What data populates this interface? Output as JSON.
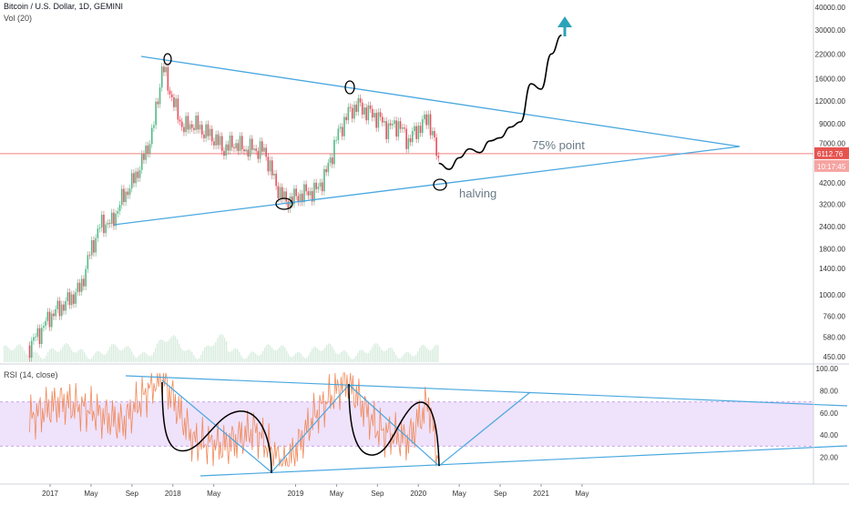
{
  "legend": {
    "symbol": "Bitcoin / U.S. Dollar, 1D, GEMINI",
    "volume": "Vol (20)",
    "rsi": "RSI (14, close)"
  },
  "annotations": {
    "point75": "75% point",
    "halving": "halving"
  },
  "price_badges": {
    "last_price": "6112.76",
    "countdown": "10:17:45"
  },
  "colors": {
    "trendline": "#4aa8e0",
    "candle_up": "#53b987",
    "candle_down": "#eb4d5c",
    "hline": "#f57f7f",
    "rsi_line": "#f0895a",
    "rsi_band": "#efe2fb",
    "arrow": "#2aa3b8",
    "drawing": "#000000"
  },
  "chart_data": [
    {
      "type": "line",
      "name": "price",
      "scale": "log",
      "y_tick_labels": [
        "40000.00",
        "30000.00",
        "22000.00",
        "16000.00",
        "12000.00",
        "9000.00",
        "7000.00",
        "6112.76",
        "5400.00",
        "4200.00",
        "3200.00",
        "2400.00",
        "1800.00",
        "1400.00",
        "1000.00",
        "760.00",
        "580.00",
        "450.00"
      ],
      "ylim": [
        420,
        42000
      ],
      "x_tick_labels": [
        "2017",
        "May",
        "Sep",
        "2018",
        "May",
        "2019",
        "May",
        "Sep",
        "2020",
        "May",
        "Sep",
        "2021",
        "May"
      ],
      "x": [
        "2016-11",
        "2016-12",
        "2017-01",
        "2017-02",
        "2017-03",
        "2017-04",
        "2017-05",
        "2017-06",
        "2017-07",
        "2017-08",
        "2017-09",
        "2017-10",
        "2017-11",
        "2017-12",
        "2018-01",
        "2018-02",
        "2018-03",
        "2018-04",
        "2018-05",
        "2018-06",
        "2018-07",
        "2018-08",
        "2018-09",
        "2018-10",
        "2018-11",
        "2018-12",
        "2019-01",
        "2019-02",
        "2019-03",
        "2019-04",
        "2019-05",
        "2019-06",
        "2019-07",
        "2019-08",
        "2019-09",
        "2019-10",
        "2019-11",
        "2019-12",
        "2020-01",
        "2020-02",
        "2020-03"
      ],
      "values": [
        520,
        620,
        760,
        850,
        950,
        1100,
        1800,
        2500,
        2500,
        3400,
        4200,
        5500,
        8000,
        19000,
        12000,
        8500,
        9000,
        8200,
        7500,
        6500,
        7000,
        6500,
        6500,
        6300,
        4200,
        3300,
        3500,
        3700,
        3800,
        4800,
        7500,
        10000,
        11500,
        10500,
        9800,
        8500,
        9000,
        7200,
        8500,
        9800,
        5400
      ],
      "hline": 6112.76
    },
    {
      "type": "line",
      "name": "projection",
      "x": [
        "2020-03",
        "2020-04",
        "2020-05",
        "2020-06",
        "2020-07",
        "2020-08",
        "2020-09",
        "2020-10",
        "2020-11",
        "2020-12",
        "2021-01",
        "2021-02",
        "2021-03"
      ],
      "values": [
        5400,
        5000,
        5800,
        6500,
        6200,
        7200,
        7500,
        8600,
        9200,
        15000,
        14000,
        22000,
        28000
      ]
    },
    {
      "type": "line",
      "name": "rsi",
      "y_tick_labels": [
        "100.00",
        "80.00",
        "60.00",
        "40.00",
        "20.00"
      ],
      "ylim": [
        0,
        100
      ],
      "band": [
        30,
        70
      ],
      "x": [
        "2016-11",
        "2017-02",
        "2017-05",
        "2017-08",
        "2017-11",
        "2017-12",
        "2018-03",
        "2018-06",
        "2018-09",
        "2018-12",
        "2019-03",
        "2019-06",
        "2019-09",
        "2019-12",
        "2020-02",
        "2020-03"
      ],
      "values": [
        55,
        70,
        62,
        50,
        85,
        92,
        35,
        30,
        45,
        10,
        60,
        90,
        45,
        35,
        70,
        15
      ]
    }
  ]
}
